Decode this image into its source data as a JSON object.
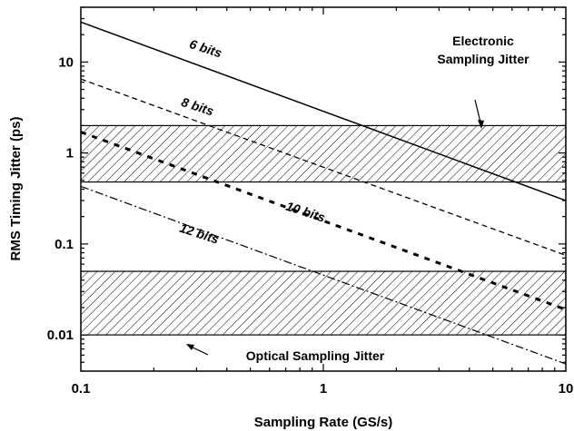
{
  "chart_data": {
    "type": "line",
    "x_scale": "log",
    "y_scale": "log",
    "xlabel": "Sampling Rate (GS/s)",
    "ylabel": "RMS Timing Jitter (ps)",
    "xlim": [
      0.1,
      10
    ],
    "ylim": [
      0.004,
      40
    ],
    "x_ticks": [
      "0.1",
      "1",
      "10"
    ],
    "y_ticks": [
      "0.01",
      "0.1",
      "1",
      "10"
    ],
    "grid": false,
    "legend": "none",
    "series": [
      {
        "name": "6 bits",
        "style": "solid",
        "x": [
          0.1,
          10
        ],
        "y": [
          27.5,
          0.3
        ]
      },
      {
        "name": "8 bits",
        "style": "dashed",
        "x": [
          0.1,
          10
        ],
        "y": [
          6.5,
          0.075
        ]
      },
      {
        "name": "10 bits",
        "style": "bold-dashed",
        "x": [
          0.1,
          10
        ],
        "y": [
          1.7,
          0.019
        ]
      },
      {
        "name": "12 bits",
        "style": "dash-dot",
        "x": [
          0.1,
          10
        ],
        "y": [
          0.43,
          0.0048
        ]
      }
    ],
    "bands": [
      {
        "label": "Electronic Sampling Jitter",
        "y_range": [
          0.48,
          2.0
        ],
        "fill": "hatched"
      },
      {
        "label": "Optical Sampling Jitter",
        "y_range": [
          0.01,
          0.05
        ],
        "fill": "hatched"
      }
    ]
  }
}
